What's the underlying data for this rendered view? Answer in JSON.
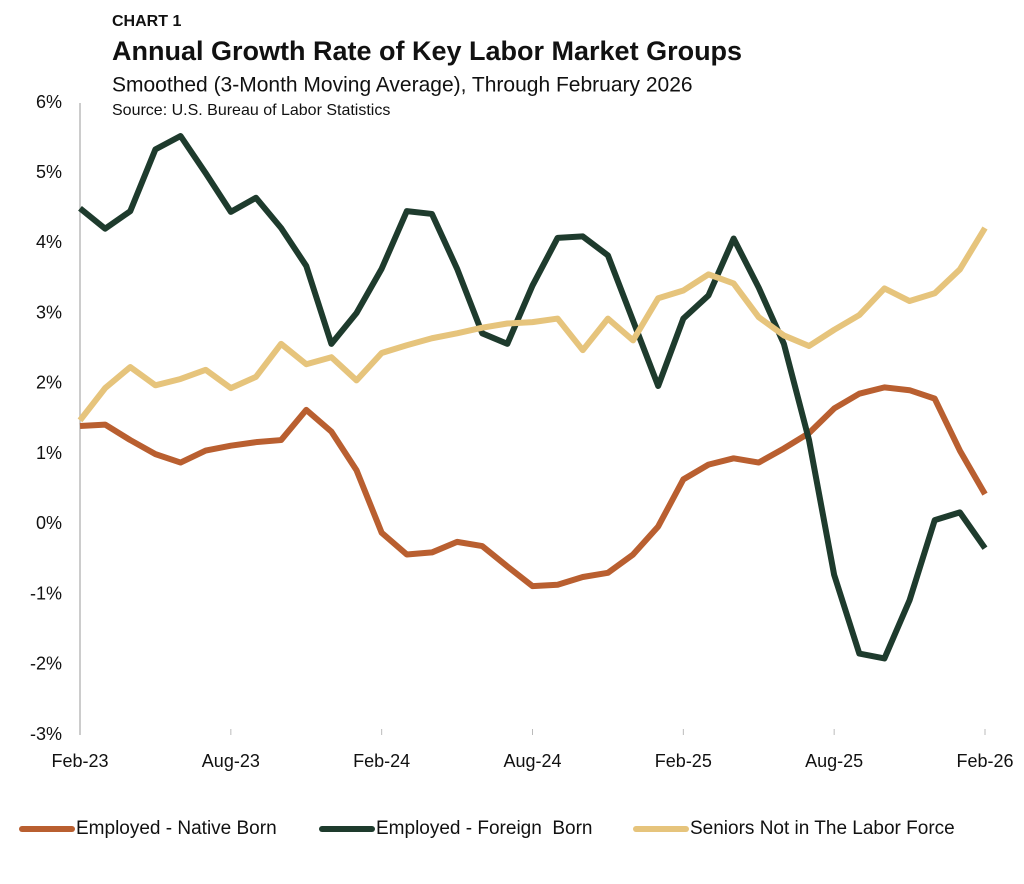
{
  "chart_data": {
    "type": "line",
    "kicker": "CHART 1",
    "title": "Annual Growth Rate of Key Labor Market Groups",
    "subtitle": "Smoothed (3-Month Moving Average), Through February 2026",
    "source": "Source: U.S. Bureau of Labor Statistics",
    "categories": [
      "Feb-23",
      null,
      null,
      null,
      null,
      null,
      "Aug-23",
      null,
      null,
      null,
      null,
      null,
      "Feb-24",
      null,
      null,
      null,
      null,
      null,
      "Aug-24",
      null,
      null,
      null,
      null,
      null,
      "Feb-25",
      null,
      null,
      null,
      null,
      null,
      "Aug-25",
      null,
      null,
      null,
      null,
      null,
      "Feb-26"
    ],
    "ylim": [
      -3,
      6
    ],
    "yticks": [
      {
        "value": -3,
        "label": "-3%"
      },
      {
        "value": -2,
        "label": "-2%"
      },
      {
        "value": -1,
        "label": "-1%"
      },
      {
        "value": 0,
        "label": "0%"
      },
      {
        "value": 1,
        "label": "1%"
      },
      {
        "value": 2,
        "label": "2%"
      },
      {
        "value": 3,
        "label": "3%"
      },
      {
        "value": 4,
        "label": "4%"
      },
      {
        "value": 5,
        "label": "5%"
      },
      {
        "value": 6,
        "label": "6%"
      }
    ],
    "grid": false,
    "legend": "bottom",
    "series": [
      {
        "name": "Employed - Native Born",
        "color": "#b95f30",
        "values": [
          1.4,
          1.42,
          1.2,
          1.0,
          0.88,
          1.05,
          1.12,
          1.17,
          1.2,
          1.63,
          1.32,
          0.77,
          -0.12,
          -0.43,
          -0.4,
          -0.25,
          -0.31,
          -0.6,
          -0.88,
          -0.86,
          -0.75,
          -0.69,
          -0.43,
          -0.03,
          0.64,
          0.85,
          0.94,
          0.88,
          1.08,
          1.3,
          1.65,
          1.86,
          1.95,
          1.91,
          1.79,
          1.05,
          0.43
        ]
      },
      {
        "name": "Employed - Foreign  Born",
        "color": "#1e3b2d",
        "values": [
          4.5,
          4.21,
          4.46,
          5.34,
          5.53,
          5.0,
          4.45,
          4.65,
          4.22,
          3.68,
          2.57,
          3.01,
          3.64,
          4.46,
          4.42,
          3.64,
          2.72,
          2.57,
          3.4,
          4.08,
          4.1,
          3.83,
          2.9,
          1.97,
          2.93,
          3.26,
          4.07,
          3.37,
          2.57,
          1.2,
          -0.72,
          -1.84,
          -1.91,
          -1.08,
          0.06,
          0.17,
          -0.34
        ]
      },
      {
        "name": "Seniors Not in The Labor Force",
        "color": "#e6c47c",
        "values": [
          1.48,
          1.94,
          2.24,
          1.98,
          2.07,
          2.2,
          1.94,
          2.1,
          2.57,
          2.28,
          2.38,
          2.05,
          2.44,
          2.55,
          2.65,
          2.72,
          2.8,
          2.86,
          2.88,
          2.93,
          2.48,
          2.93,
          2.62,
          3.22,
          3.33,
          3.56,
          3.43,
          2.95,
          2.69,
          2.54,
          2.77,
          2.98,
          3.36,
          3.18,
          3.29,
          3.63,
          4.22
        ]
      }
    ]
  }
}
